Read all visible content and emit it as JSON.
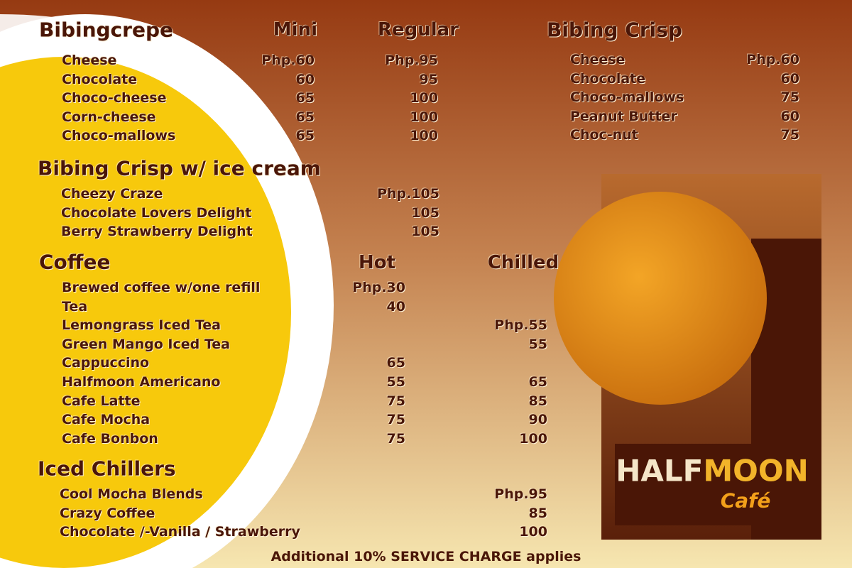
{
  "bibingcrepe": {
    "title": "Bibingcrepe",
    "columns": [
      "Mini",
      "Regular"
    ],
    "items": [
      {
        "name": "Cheese",
        "prices": [
          "Php.60",
          "Php.95"
        ]
      },
      {
        "name": "Chocolate",
        "prices": [
          "60",
          "95"
        ]
      },
      {
        "name": "Choco-cheese",
        "prices": [
          "65",
          "100"
        ]
      },
      {
        "name": "Corn-cheese",
        "prices": [
          "65",
          "100"
        ]
      },
      {
        "name": "Choco-mallows",
        "prices": [
          "65",
          "100"
        ]
      }
    ]
  },
  "bibing_crisp": {
    "title": "Bibing Crisp",
    "items": [
      {
        "name": "Cheese",
        "price": "Php.60"
      },
      {
        "name": "Chocolate",
        "price": "60"
      },
      {
        "name": "Choco-mallows",
        "price": "75"
      },
      {
        "name": "Peanut Butter",
        "price": "60"
      },
      {
        "name": "Choc-nut",
        "price": "75"
      }
    ]
  },
  "crisp_ice_cream": {
    "title": "Bibing Crisp w/ ice cream",
    "items": [
      {
        "name": "Cheezy Craze",
        "price": "Php.105"
      },
      {
        "name": "Chocolate Lovers Delight",
        "price": "105"
      },
      {
        "name": "Berry Strawberry Delight",
        "price": "105"
      }
    ]
  },
  "coffee": {
    "title": "Coffee",
    "columns": [
      "Hot",
      "Chilled"
    ],
    "items": [
      {
        "name": "Brewed coffee w/one refill",
        "prices": [
          "Php.30",
          null
        ]
      },
      {
        "name": "Tea",
        "prices": [
          "40",
          null
        ]
      },
      {
        "name": "Lemongrass Iced Tea",
        "prices": [
          null,
          "Php.55"
        ]
      },
      {
        "name": "Green Mango Iced Tea",
        "prices": [
          null,
          "55"
        ]
      },
      {
        "name": "Cappuccino",
        "prices": [
          "65",
          null
        ]
      },
      {
        "name": "Halfmoon Americano",
        "prices": [
          "55",
          "65"
        ]
      },
      {
        "name": "Cafe Latte",
        "prices": [
          "75",
          "85"
        ]
      },
      {
        "name": "Cafe Mocha",
        "prices": [
          "75",
          "90"
        ]
      },
      {
        "name": "Cafe Bonbon",
        "prices": [
          "75",
          "100"
        ]
      }
    ]
  },
  "iced_chillers": {
    "title": "Iced Chillers",
    "items": [
      {
        "name": "Cool Mocha Blends",
        "price": "Php.95"
      },
      {
        "name": "Crazy Coffee",
        "price": "85"
      },
      {
        "name": "Chocolate /-Vanilla / Strawberry",
        "price": "100"
      }
    ]
  },
  "logo": {
    "brand_1": "HALF",
    "brand_2": "MOON",
    "subtitle": "Café"
  },
  "footer": "Additional 10% SERVICE CHARGE applies"
}
